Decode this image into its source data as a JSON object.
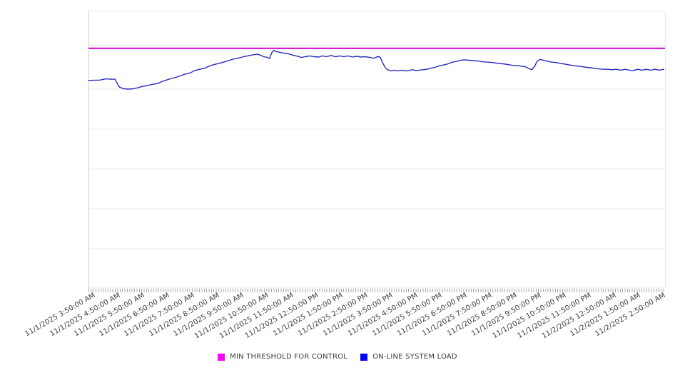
{
  "page": {
    "background": "#ffffff"
  },
  "chart_data": {
    "type": "line",
    "title": "",
    "xlabel": "",
    "ylabel": "",
    "grid": "horizontal gridlines on, no y-axis tick labels visible",
    "legend_position": "bottom-center",
    "y_axis": {
      "tick_labels_visible": false,
      "ylim": [
        0,
        7
      ],
      "gridline_interval": 1,
      "unit": "relative gridline units (no numeric scale shown in image)"
    },
    "x_axis": {
      "label_rotation_deg": -30,
      "minor_ticks": "dense uniform tick comb along full axis",
      "labels": [
        "11/1/2025 3:50:00 AM",
        "11/1/2025 4:50:00 AM",
        "11/1/2025 5:50:00 AM",
        "11/1/2025 6:50:00 AM",
        "11/1/2025 7:50:00 AM",
        "11/1/2025 8:50:00 AM",
        "11/1/2025 9:50:00 AM",
        "11/1/2025 10:50:00 AM",
        "11/1/2025 11:50:00 AM",
        "11/1/2025 12:50:00 PM",
        "11/1/2025 1:50:00 PM",
        "11/1/2025 2:50:00 PM",
        "11/1/2025 3:50:00 PM",
        "11/1/2025 4:50:00 PM",
        "11/1/2025 5:50:00 PM",
        "11/1/2025 6:50:00 PM",
        "11/1/2025 7:50:00 PM",
        "11/1/2025 8:50:00 PM",
        "11/1/2025 9:50:00 PM",
        "11/1/2025 10:50:00 PM",
        "11/1/2025 11:50:00 PM",
        "11/2/2025 12:50:00 AM",
        "11/2/2025 1:50:00 AM",
        "11/2/2025 2:50:00 AM"
      ]
    },
    "series": [
      {
        "name": "MIN THRESHOLD FOR CONTROL",
        "type": "horizontal-threshold-line",
        "color": "#C800C8",
        "value": 6.05
      },
      {
        "name": "ON-LINE SYSTEM LOAD",
        "type": "line",
        "color": "#2A2AC0",
        "x_format": "fraction of plot width (time axis)",
        "points": [
          [
            0.0,
            5.24
          ],
          [
            0.02,
            5.25
          ],
          [
            0.03,
            5.28
          ],
          [
            0.038,
            5.27
          ],
          [
            0.046,
            5.27
          ],
          [
            0.05,
            5.16
          ],
          [
            0.054,
            5.07
          ],
          [
            0.061,
            5.03
          ],
          [
            0.069,
            5.02
          ],
          [
            0.078,
            5.03
          ],
          [
            0.087,
            5.06
          ],
          [
            0.094,
            5.09
          ],
          [
            0.103,
            5.11
          ],
          [
            0.11,
            5.14
          ],
          [
            0.119,
            5.16
          ],
          [
            0.127,
            5.21
          ],
          [
            0.135,
            5.25
          ],
          [
            0.144,
            5.29
          ],
          [
            0.152,
            5.32
          ],
          [
            0.16,
            5.36
          ],
          [
            0.168,
            5.4
          ],
          [
            0.177,
            5.43
          ],
          [
            0.184,
            5.49
          ],
          [
            0.193,
            5.52
          ],
          [
            0.202,
            5.55
          ],
          [
            0.209,
            5.6
          ],
          [
            0.218,
            5.64
          ],
          [
            0.226,
            5.67
          ],
          [
            0.234,
            5.7
          ],
          [
            0.243,
            5.74
          ],
          [
            0.251,
            5.78
          ],
          [
            0.259,
            5.8
          ],
          [
            0.267,
            5.83
          ],
          [
            0.276,
            5.86
          ],
          [
            0.283,
            5.88
          ],
          [
            0.292,
            5.9
          ],
          [
            0.298,
            5.88
          ],
          [
            0.304,
            5.84
          ],
          [
            0.311,
            5.82
          ],
          [
            0.314,
            5.79
          ],
          [
            0.318,
            5.94
          ],
          [
            0.321,
            6.0
          ],
          [
            0.325,
            5.97
          ],
          [
            0.332,
            5.95
          ],
          [
            0.339,
            5.93
          ],
          [
            0.347,
            5.91
          ],
          [
            0.354,
            5.88
          ],
          [
            0.363,
            5.85
          ],
          [
            0.369,
            5.82
          ],
          [
            0.376,
            5.84
          ],
          [
            0.384,
            5.86
          ],
          [
            0.391,
            5.84
          ],
          [
            0.399,
            5.83
          ],
          [
            0.406,
            5.86
          ],
          [
            0.413,
            5.84
          ],
          [
            0.421,
            5.87
          ],
          [
            0.428,
            5.84
          ],
          [
            0.436,
            5.86
          ],
          [
            0.443,
            5.84
          ],
          [
            0.45,
            5.86
          ],
          [
            0.458,
            5.83
          ],
          [
            0.465,
            5.85
          ],
          [
            0.473,
            5.83
          ],
          [
            0.48,
            5.84
          ],
          [
            0.488,
            5.82
          ],
          [
            0.495,
            5.8
          ],
          [
            0.501,
            5.84
          ],
          [
            0.506,
            5.83
          ],
          [
            0.51,
            5.69
          ],
          [
            0.515,
            5.56
          ],
          [
            0.519,
            5.51
          ],
          [
            0.525,
            5.48
          ],
          [
            0.531,
            5.5
          ],
          [
            0.537,
            5.48
          ],
          [
            0.543,
            5.5
          ],
          [
            0.55,
            5.48
          ],
          [
            0.556,
            5.49
          ],
          [
            0.562,
            5.51
          ],
          [
            0.568,
            5.49
          ],
          [
            0.574,
            5.5
          ],
          [
            0.58,
            5.51
          ],
          [
            0.587,
            5.52
          ],
          [
            0.594,
            5.55
          ],
          [
            0.601,
            5.57
          ],
          [
            0.609,
            5.61
          ],
          [
            0.616,
            5.63
          ],
          [
            0.624,
            5.66
          ],
          [
            0.631,
            5.7
          ],
          [
            0.639,
            5.72
          ],
          [
            0.646,
            5.75
          ],
          [
            0.652,
            5.76
          ],
          [
            0.66,
            5.75
          ],
          [
            0.667,
            5.74
          ],
          [
            0.676,
            5.73
          ],
          [
            0.684,
            5.71
          ],
          [
            0.693,
            5.7
          ],
          [
            0.702,
            5.69
          ],
          [
            0.71,
            5.67
          ],
          [
            0.719,
            5.66
          ],
          [
            0.728,
            5.64
          ],
          [
            0.736,
            5.62
          ],
          [
            0.745,
            5.61
          ],
          [
            0.751,
            5.6
          ],
          [
            0.757,
            5.59
          ],
          [
            0.764,
            5.54
          ],
          [
            0.769,
            5.51
          ],
          [
            0.774,
            5.6
          ],
          [
            0.778,
            5.72
          ],
          [
            0.783,
            5.77
          ],
          [
            0.79,
            5.75
          ],
          [
            0.797,
            5.72
          ],
          [
            0.804,
            5.7
          ],
          [
            0.812,
            5.69
          ],
          [
            0.819,
            5.67
          ],
          [
            0.827,
            5.65
          ],
          [
            0.834,
            5.63
          ],
          [
            0.842,
            5.61
          ],
          [
            0.849,
            5.6
          ],
          [
            0.856,
            5.59
          ],
          [
            0.864,
            5.57
          ],
          [
            0.871,
            5.56
          ],
          [
            0.879,
            5.54
          ],
          [
            0.886,
            5.53
          ],
          [
            0.894,
            5.52
          ],
          [
            0.901,
            5.52
          ],
          [
            0.908,
            5.51
          ],
          [
            0.916,
            5.52
          ],
          [
            0.923,
            5.5
          ],
          [
            0.931,
            5.52
          ],
          [
            0.938,
            5.5
          ],
          [
            0.945,
            5.49
          ],
          [
            0.953,
            5.52
          ],
          [
            0.96,
            5.5
          ],
          [
            0.968,
            5.52
          ],
          [
            0.975,
            5.5
          ],
          [
            0.983,
            5.52
          ],
          [
            0.99,
            5.5
          ],
          [
            0.998,
            5.52
          ]
        ]
      }
    ]
  },
  "legend": {
    "items": [
      {
        "label": "MIN THRESHOLD FOR CONTROL",
        "swatch_color": "#FF00FF"
      },
      {
        "label": "ON-LINE SYSTEM LOAD",
        "swatch_color": "#0000FF"
      }
    ]
  },
  "colors": {
    "gridline": "#e8e8e8",
    "plot_border": "#cccccc",
    "tick_comb": "#a9a9a9",
    "tick_label_text": "#3c3c3c",
    "legend_text": "#3a3a3a"
  }
}
